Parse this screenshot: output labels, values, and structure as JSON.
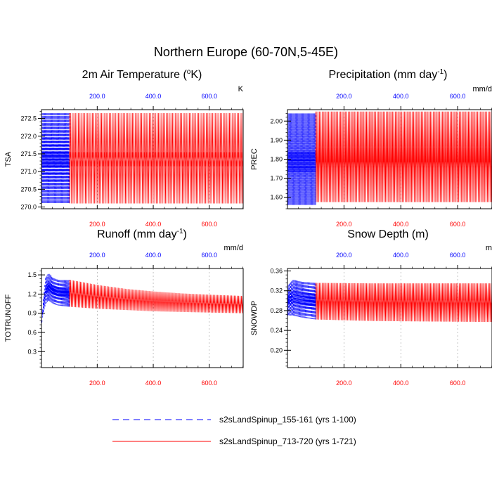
{
  "main_title": "Northern Europe (60-70N,5-45E)",
  "colors": {
    "blue_series": "#0000ff",
    "red_series": "#ff0000",
    "grid": "#9a9a9a",
    "axis": "#000000"
  },
  "legend": [
    {
      "label": "s2sLandSpinup_155-161 (yrs 1-100)",
      "color": "#0000ff",
      "style": "dashed"
    },
    {
      "label": "s2sLandSpinup_713-720 (yrs 1-721)",
      "color": "#ff0000",
      "style": "solid"
    }
  ],
  "chart_data": [
    {
      "type": "line",
      "title_main": "2m Air Temperature (",
      "title_sup": "o",
      "title_rest": "K)",
      "ylabel": "TSA",
      "units": "K",
      "xlim": [
        1,
        721
      ],
      "top_xlim": [
        1,
        721
      ],
      "ylim": [
        269.95,
        272.75
      ],
      "yticks": [
        270.0,
        270.5,
        271.0,
        271.5,
        272.0,
        272.5
      ],
      "ytick_labels": [
        "270.0",
        "270.5",
        "271.0",
        "271.5",
        "272.0",
        "272.5"
      ],
      "xticks": [
        200,
        400,
        600
      ],
      "xtick_labels": [
        "200.0",
        "400.0",
        "600.0"
      ],
      "series": [
        {
          "name": "s2sLandSpinup_155-161 (yrs 1-100)",
          "x": [
            1,
            100
          ],
          "period": 2.8,
          "bands": [
            [
              270.1,
              272.65
            ],
            [
              271.15,
              271.55
            ]
          ],
          "color": "#0000ff",
          "dash": true
        },
        {
          "name": "s2sLandSpinup_713-720 (yrs 1-721)",
          "x": [
            100,
            721
          ],
          "period": 5.5,
          "bands": [
            [
              270.1,
              272.65
            ],
            [
              271.15,
              271.55
            ]
          ],
          "color": "#ff0000",
          "dash": false
        }
      ]
    },
    {
      "type": "line",
      "title_main": "Precipitation (mm day",
      "title_sup": "-1",
      "title_rest": ")",
      "ylabel": "PREC",
      "units": "mm/d",
      "xlim": [
        1,
        721
      ],
      "top_xlim": [
        1,
        721
      ],
      "ylim": [
        1.54,
        2.06
      ],
      "yticks": [
        1.6,
        1.7,
        1.8,
        1.9,
        2.0
      ],
      "ytick_labels": [
        "1.60",
        "1.70",
        "1.80",
        "1.90",
        "2.00"
      ],
      "xticks": [
        200,
        400,
        600
      ],
      "xtick_labels": [
        "200.0",
        "400.0",
        "600.0"
      ],
      "series": [
        {
          "name": "s2sLandSpinup_155-161 (yrs 1-100)",
          "x": [
            1,
            100
          ],
          "period": 2.8,
          "bands": [
            [
              1.56,
              2.04
            ],
            [
              1.73,
              1.84
            ]
          ],
          "color": "#0000ff",
          "dash": true
        },
        {
          "name": "s2sLandSpinup_713-720 (yrs 1-721)",
          "x": [
            100,
            721
          ],
          "period": 4.6,
          "bands": [
            [
              1.575,
              2.05
            ],
            [
              1.69,
              1.86
            ],
            [
              1.72,
              1.83
            ]
          ],
          "color": "#ff0000",
          "dash": false
        }
      ]
    },
    {
      "type": "line",
      "title_main": "Runoff (mm day",
      "title_sup": "-1",
      "title_rest": ")",
      "ylabel": "TOTRUNOFF",
      "units": "mm/d",
      "xlim": [
        1,
        721
      ],
      "top_xlim": [
        1,
        721
      ],
      "ylim": [
        0.05,
        1.6
      ],
      "yticks": [
        0.3,
        0.6,
        0.9,
        1.2,
        1.5
      ],
      "ytick_labels": [
        "0.3",
        "0.6",
        "0.9",
        "1.2",
        "1.5"
      ],
      "xticks": [
        200,
        400,
        600
      ],
      "xtick_labels": [
        "200.0",
        "400.0",
        "600.0"
      ],
      "series": [
        {
          "name": "s2sLandSpinup_155-161 (yrs 1-100)",
          "x": [
            1,
            100
          ],
          "period": 2.8,
          "envelope": [
            [
              1,
              0.75,
              0.8
            ],
            [
              6,
              0.9,
              1.1
            ],
            [
              15,
              1.05,
              1.45
            ],
            [
              25,
              1.1,
              1.52
            ],
            [
              40,
              1.05,
              1.46
            ],
            [
              60,
              1.02,
              1.42
            ],
            [
              100,
              1.0,
              1.42
            ]
          ],
          "color": "#0000ff",
          "dash": true
        },
        {
          "name": "s2sLandSpinup_713-720 (yrs 1-721)",
          "x": [
            100,
            721
          ],
          "period": 5.0,
          "envelope": [
            [
              100,
              1.0,
              1.42
            ],
            [
              200,
              0.97,
              1.34
            ],
            [
              300,
              0.95,
              1.28
            ],
            [
              400,
              0.93,
              1.24
            ],
            [
              500,
              0.92,
              1.21
            ],
            [
              600,
              0.91,
              1.19
            ],
            [
              721,
              0.9,
              1.17
            ]
          ],
          "color": "#ff0000",
          "dash": false
        }
      ]
    },
    {
      "type": "line",
      "title_main": "Snow Depth (m)",
      "title_sup": "",
      "title_rest": "",
      "ylabel": "SNOWDP",
      "units": "m",
      "xlim": [
        1,
        721
      ],
      "top_xlim": [
        1,
        721
      ],
      "ylim": [
        0.165,
        0.365
      ],
      "yticks": [
        0.2,
        0.24,
        0.28,
        0.32,
        0.36
      ],
      "ytick_labels": [
        "0.20",
        "0.24",
        "0.28",
        "0.32",
        "0.36"
      ],
      "xticks": [
        200,
        400,
        600
      ],
      "xtick_labels": [
        "200.0",
        "400.0",
        "600.0"
      ],
      "series": [
        {
          "name": "s2sLandSpinup_155-161 (yrs 1-100)",
          "x": [
            1,
            100
          ],
          "period": 2.8,
          "envelope": [
            [
              1,
              0.27,
              0.33
            ],
            [
              20,
              0.27,
              0.342
            ],
            [
              50,
              0.266,
              0.338
            ],
            [
              100,
              0.262,
              0.336
            ]
          ],
          "color": "#0000ff",
          "dash": true
        },
        {
          "name": "s2sLandSpinup_713-720 (yrs 1-721)",
          "x": [
            100,
            721
          ],
          "period": 4.6,
          "envelope": [
            [
              100,
              0.262,
              0.336
            ],
            [
              300,
              0.259,
              0.335
            ],
            [
              500,
              0.258,
              0.335
            ],
            [
              721,
              0.257,
              0.335
            ]
          ],
          "color": "#ff0000",
          "dash": false
        }
      ]
    }
  ]
}
